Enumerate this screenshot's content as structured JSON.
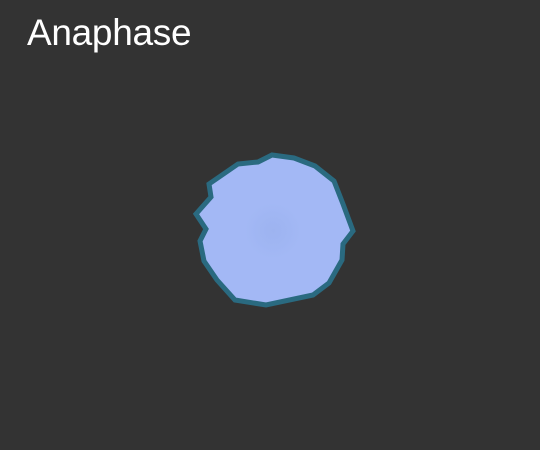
{
  "title": "Anaphase",
  "colors": {
    "background": "#333333",
    "title_text": "#ffffff",
    "cell_fill": "#a3b8f5",
    "cell_outline": "#2a6a80",
    "nucleus_region": "#9fb5f2"
  }
}
